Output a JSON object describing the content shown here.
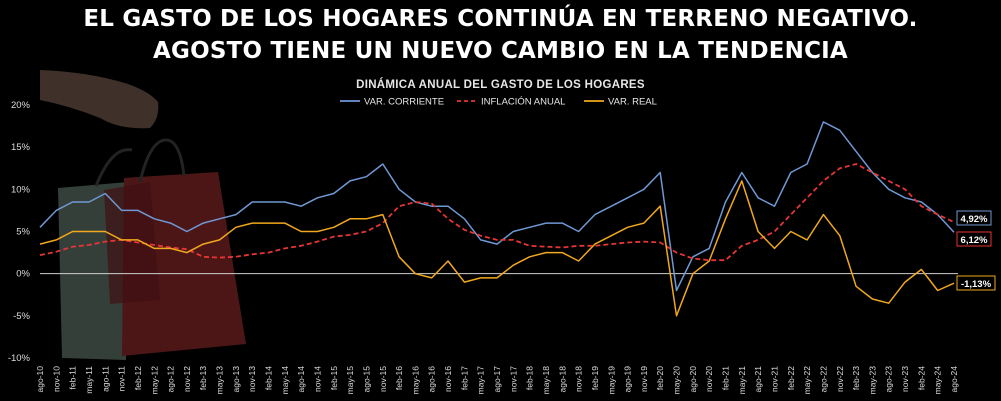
{
  "headline": {
    "line1": "EL GASTO DE LOS HOGARES CONTINÚA EN TERRENO NEGATIVO.",
    "line2": "AGOSTO TIENE UN NUEVO CAMBIO EN LA TENDENCIA"
  },
  "chart_data": {
    "type": "line",
    "title": "DINÁMICA ANUAL DEL GASTO DE LOS HOGARES",
    "xlabel": "",
    "ylabel": "",
    "unit": "%",
    "ylim": [
      -10,
      20
    ],
    "y_ticks": [
      "20%",
      "15%",
      "10%",
      "5%",
      "0%",
      "-5%",
      "-10%"
    ],
    "grid": false,
    "legend_position": "top-center",
    "x_tick_labels": [
      "ago-10",
      "nov-10",
      "feb-11",
      "may-11",
      "ago-11",
      "nov-11",
      "feb-12",
      "may-12",
      "ago-12",
      "nov-12",
      "feb-13",
      "may-13",
      "ago-13",
      "nov-13",
      "feb-14",
      "may-14",
      "ago-14",
      "nov-14",
      "feb-15",
      "may-15",
      "ago-15",
      "nov-15",
      "feb-16",
      "may-16",
      "ago-16",
      "nov-16",
      "feb-17",
      "may-17",
      "ago-17",
      "nov-17",
      "feb-18",
      "may-18",
      "ago-18",
      "nov-18",
      "feb-19",
      "may-19",
      "ago-19",
      "nov-19",
      "feb-20",
      "may-20",
      "ago-20",
      "nov-20",
      "feb-21",
      "may-21",
      "ago-21",
      "nov-21",
      "feb-22",
      "may-22",
      "ago-22",
      "nov-22",
      "feb-23",
      "may-23",
      "ago-23",
      "nov-23",
      "feb-24",
      "may-24",
      "ago-24"
    ],
    "series": [
      {
        "name": "VAR. CORRIENTE",
        "color": "#6f98d4",
        "dash": "solid",
        "end_label": "4,92%",
        "values": [
          5.5,
          7.5,
          8.5,
          8.5,
          9.5,
          7.5,
          7.5,
          6.5,
          6.0,
          5.0,
          6.0,
          6.5,
          7.0,
          8.5,
          8.5,
          8.5,
          8.0,
          9.0,
          9.5,
          11.0,
          11.5,
          13.0,
          10.0,
          8.5,
          8.0,
          8.0,
          6.5,
          4.0,
          3.5,
          5.0,
          5.5,
          6.0,
          6.0,
          5.0,
          7.0,
          8.0,
          9.0,
          10.0,
          12.0,
          -2.0,
          2.0,
          3.0,
          8.5,
          12.0,
          9.0,
          8.0,
          12.0,
          13.0,
          18.0,
          17.0,
          14.5,
          12.0,
          10.0,
          9.0,
          8.5,
          7.0,
          4.92
        ]
      },
      {
        "name": "INFLACIÓN ANUAL",
        "color": "#e53535",
        "dash": "dashed",
        "end_label": "6,12%",
        "values": [
          2.2,
          2.6,
          3.2,
          3.4,
          3.8,
          4.0,
          3.7,
          3.4,
          3.1,
          2.9,
          2.0,
          1.9,
          2.0,
          2.3,
          2.5,
          3.0,
          3.3,
          3.8,
          4.4,
          4.6,
          5.0,
          6.0,
          8.0,
          8.5,
          8.3,
          6.5,
          5.2,
          4.5,
          4.0,
          4.0,
          3.3,
          3.2,
          3.1,
          3.3,
          3.3,
          3.5,
          3.7,
          3.8,
          3.7,
          2.5,
          1.8,
          1.6,
          1.6,
          3.3,
          4.0,
          5.0,
          7.0,
          9.0,
          11.0,
          12.5,
          13.0,
          12.0,
          11.0,
          10.0,
          8.0,
          7.0,
          6.12
        ]
      },
      {
        "name": "VAR. REAL",
        "color": "#f0a81c",
        "dash": "solid",
        "end_label": "-1,13%",
        "values": [
          3.5,
          4.0,
          5.0,
          5.0,
          5.0,
          4.0,
          4.0,
          3.0,
          3.0,
          2.5,
          3.5,
          4.0,
          5.5,
          6.0,
          6.0,
          6.0,
          5.0,
          5.0,
          5.5,
          6.5,
          6.5,
          7.0,
          2.0,
          0.0,
          -0.5,
          1.5,
          -1.0,
          -0.5,
          -0.5,
          1.0,
          2.0,
          2.5,
          2.5,
          1.5,
          3.5,
          4.5,
          5.5,
          6.0,
          8.0,
          -5.0,
          0.0,
          1.5,
          6.5,
          11.0,
          5.0,
          3.0,
          5.0,
          4.0,
          7.0,
          4.5,
          -1.5,
          -3.0,
          -3.5,
          -1.0,
          0.5,
          -2.0,
          -1.13
        ]
      }
    ]
  }
}
